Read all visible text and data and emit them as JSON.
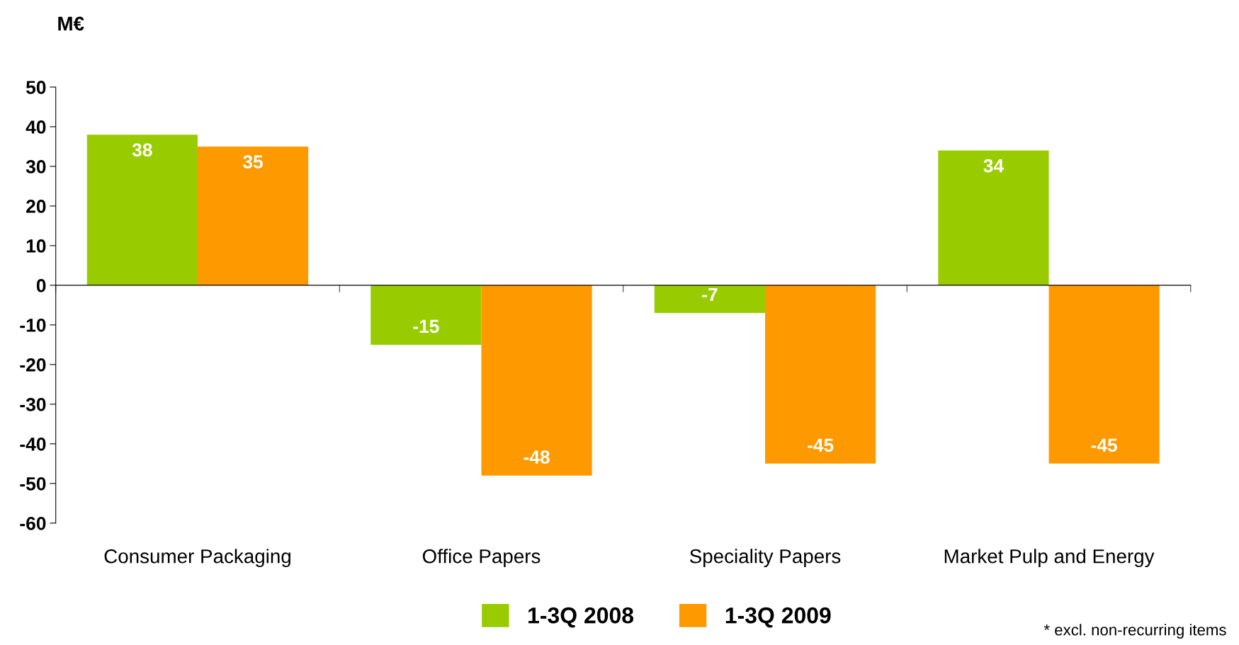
{
  "chart_data": {
    "type": "bar",
    "ylabel": "M€",
    "categories": [
      "Consumer Packaging",
      "Office Papers",
      "Speciality Papers",
      "Market Pulp and Energy"
    ],
    "series": [
      {
        "name": "1-3Q 2008",
        "color": "#99cc00",
        "values": [
          38,
          -15,
          -7,
          34
        ]
      },
      {
        "name": "1-3Q 2009",
        "color": "#ff9900",
        "values": [
          35,
          -48,
          -45,
          -45
        ]
      }
    ],
    "ylim": [
      -60,
      50
    ],
    "yticks": [
      -60,
      -50,
      -40,
      -30,
      -20,
      -10,
      0,
      10,
      20,
      30,
      40,
      50
    ],
    "data_labels": true,
    "legend": "bottom",
    "annotations": [
      "* excl. non-recurring items"
    ]
  }
}
